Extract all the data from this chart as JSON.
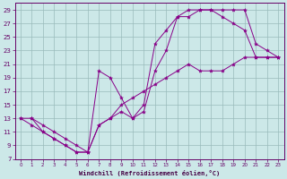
{
  "xlabel": "Windchill (Refroidissement éolien,°C)",
  "background_color": "#cce8e8",
  "line_color": "#880088",
  "grid_color": "#99bbbb",
  "xlim": [
    -0.5,
    23.5
  ],
  "ylim": [
    7,
    30
  ],
  "xticks": [
    0,
    1,
    2,
    3,
    4,
    5,
    6,
    7,
    8,
    9,
    10,
    11,
    12,
    13,
    14,
    15,
    16,
    17,
    18,
    19,
    20,
    21,
    22,
    23
  ],
  "yticks": [
    7,
    9,
    11,
    13,
    15,
    17,
    19,
    21,
    23,
    25,
    27,
    29
  ],
  "line1_x": [
    0,
    1,
    2,
    3,
    4,
    5,
    6,
    7,
    8,
    9,
    10,
    11,
    12,
    13,
    14,
    15,
    16,
    17,
    18,
    19,
    20,
    21,
    22,
    23
  ],
  "line1_y": [
    13,
    12,
    11,
    10,
    9,
    8,
    8,
    12,
    13,
    14,
    13,
    14,
    20,
    23,
    28,
    29,
    29,
    29,
    29,
    29,
    29,
    24,
    23,
    22
  ],
  "line2_x": [
    1,
    2,
    3,
    4,
    5,
    6,
    7,
    8,
    9,
    10,
    11,
    12,
    13,
    14,
    15,
    16,
    17,
    18,
    19,
    20,
    21,
    22,
    23
  ],
  "line2_y": [
    13,
    11,
    10,
    9,
    8,
    8,
    20,
    19,
    16,
    13,
    15,
    24,
    26,
    28,
    28,
    29,
    29,
    28,
    27,
    26,
    22,
    22,
    22
  ],
  "line3_x": [
    0,
    1,
    2,
    3,
    4,
    5,
    6,
    7,
    8,
    9,
    10,
    11,
    12,
    13,
    14,
    15,
    16,
    17,
    18,
    19,
    20,
    21,
    22,
    23
  ],
  "line3_y": [
    13,
    13,
    12,
    11,
    10,
    9,
    8,
    12,
    13,
    15,
    16,
    17,
    18,
    19,
    20,
    21,
    20,
    20,
    20,
    21,
    22,
    22,
    22,
    22
  ]
}
